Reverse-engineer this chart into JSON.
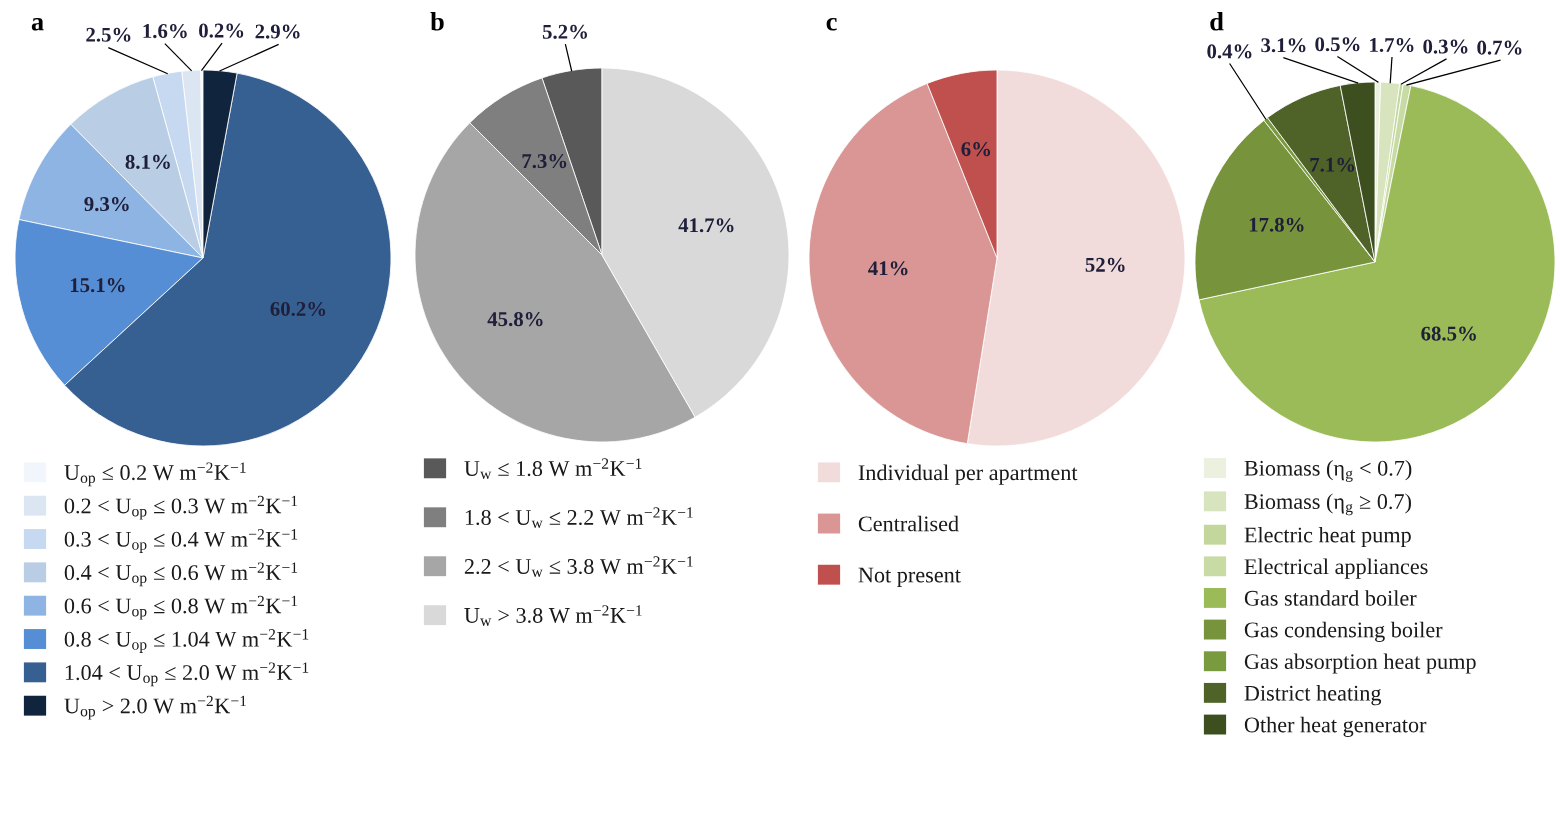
{
  "chart_data": [
    {
      "type": "pie",
      "title": "a",
      "legend": "bottom",
      "categories": [
        "U$_{op}$ ≤ 0.2 W m$^{−2}$K$^{−1}$",
        "0.2 < U$_{op}$ ≤ 0.3 W m$^{−2}$K$^{−1}$",
        "0.3 < U$_{op}$ ≤ 0.4 W m$^{−2}$K$^{−1}$",
        "0.4 < U$_{op}$ ≤ 0.6 W m$^{−2}$K$^{−1}$",
        "0.6 < U$_{op}$ ≤ 0.8 W m$^{−2}$K$^{−1}$",
        "0.8 < U$_{op}$ ≤ 1.04 W m$^{−2}$K$^{−1}$",
        "1.04 < U$_{op}$ ≤ 2.0 W m$^{−2}$K$^{−1}$",
        "U$_{op}$ > 2.0 W m$^{−2}$K$^{−1}$"
      ],
      "values": [
        0.2,
        1.6,
        2.5,
        8.1,
        9.3,
        15.1,
        60.2,
        2.9
      ],
      "value_labels": [
        "0.2%",
        "1.6%",
        "2.5%",
        "8.1%",
        "9.3%",
        "15.1%",
        "60.2%",
        "2.9%"
      ],
      "colors": [
        "#f0f6fc",
        "#dce6f2",
        "#c6d9f1",
        "#b9cde5",
        "#8eb4e3",
        "#558ed5",
        "#376092",
        "#10243e"
      ]
    },
    {
      "type": "pie",
      "title": "b",
      "legend": "bottom",
      "categories": [
        "U$_{w}$ ≤ 1.8 W m$^{−2}$K$^{−1}$",
        "1.8 < U$_{w}$ ≤ 2.2 W m$^{−2}$K$^{−1}$",
        "2.2 < U$_{w}$ ≤ 3.8 W m$^{−2}$K$^{−1}$",
        "U$_{w}$ > 3.8 W m$^{−2}$K$^{−1}$"
      ],
      "values": [
        5.2,
        7.3,
        45.8,
        41.7
      ],
      "value_labels": [
        "5.2%",
        "7.3%",
        "45.8%",
        "41.7%"
      ],
      "colors": [
        "#595959",
        "#7f7f7f",
        "#a6a6a6",
        "#d9d9d9"
      ]
    },
    {
      "type": "pie",
      "title": "c",
      "legend": "bottom",
      "categories": [
        "Individual per apartment",
        "Centralised",
        "Not present"
      ],
      "values": [
        52,
        41,
        6
      ],
      "value_labels": [
        "52%",
        "41%",
        "6%"
      ],
      "colors": [
        "#f2dcdb",
        "#d99694",
        "#c0504d"
      ]
    },
    {
      "type": "pie",
      "title": "d",
      "legend": "bottom",
      "categories": [
        "Biomass (η$_{g}$ < 0.7)",
        "Biomass (η$_{g}$ ≥ 0.7)",
        "Electric heat pump",
        "Electrical appliances",
        "Gas standard boiler",
        "Gas condensing boiler",
        "Gas absorption heat pump",
        "District heating",
        "Other heat generator"
      ],
      "values": [
        0.5,
        1.7,
        0.3,
        0.7,
        68.5,
        17.8,
        0.4,
        7.1,
        3.1
      ],
      "value_labels": [
        "0.5%",
        "1.7%",
        "0.3%",
        "0.7%",
        "68.5%",
        "17.8%",
        "0.4%",
        "7.1%",
        "3.1%"
      ],
      "colors": [
        "#ebf1de",
        "#d7e4bd",
        "#c3d69b",
        "#c9dba5",
        "#9bbb59",
        "#77933c",
        "#7a9a40",
        "#4f6228",
        "#3d4f1f"
      ]
    }
  ]
}
